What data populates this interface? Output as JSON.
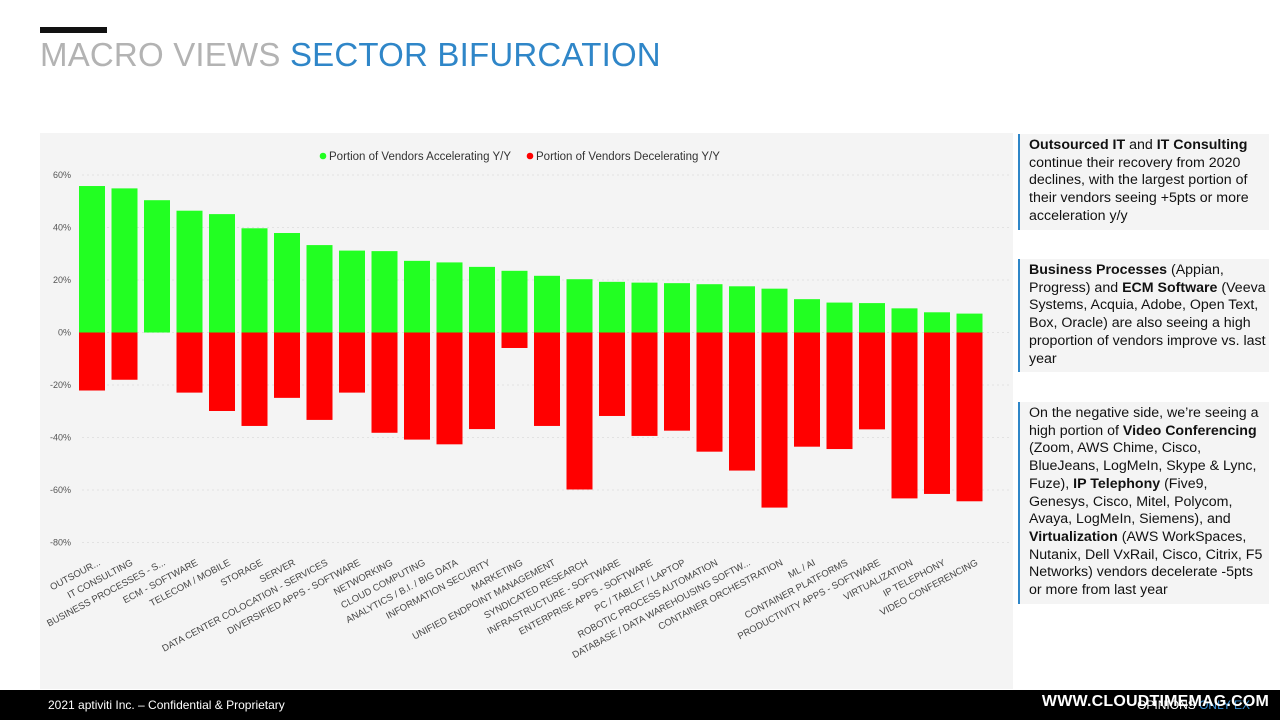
{
  "header": {
    "title_grey": "MACRO VIEWS",
    "title_blue": "SECTOR BIFURCATION"
  },
  "chart_data": {
    "type": "bar",
    "title": "",
    "xlabel": "",
    "ylabel": "",
    "ylim": [
      -80,
      60
    ],
    "yticks": [
      60,
      40,
      20,
      0,
      -20,
      -40,
      -60,
      -80
    ],
    "ytick_labels": [
      "60%",
      "40%",
      "20%",
      "0%",
      "-20%",
      "-40%",
      "-60%",
      "-80%"
    ],
    "grid": true,
    "legend_position": "top-center",
    "categories": [
      "OUTSOUR...",
      "IT CONSULTING",
      "BUSINESS PROCESSES - S...",
      "ECM - SOFTWARE",
      "TELECOM / MOBILE",
      "STORAGE",
      "SERVER",
      "DATA CENTER COLOCATION - SERVICES",
      "DIVERSIFIED APPS - SOFTWARE",
      "NETWORKING",
      "CLOUD COMPUTING",
      "ANALYTICS / B.I. / BIG DATA",
      "INFORMATION SECURITY",
      "MARKETING",
      "UNIFIED ENDPOINT MANAGEMENT",
      "SYNDICATED RESEARCH",
      "INFRASTRUCTURE - SOFTWARE",
      "ENTERPRISE APPS - SOFTWARE",
      "PC / TABLET / LAPTOP",
      "ROBOTIC PROCESS AUTOMATION",
      "DATABASE / DATA WAREHOUSING SOFTW...",
      "CONTAINER ORCHESTRATION",
      "ML / AI",
      "CONTAINER PLATFORMS",
      "PRODUCTIVITY APPS - SOFTWARE",
      "VIRTUALIZATION",
      "IP TELEPHONY",
      "VIDEO CONFERENCING"
    ],
    "series": [
      {
        "name": "Portion of Vendors Accelerating Y/Y",
        "color": "#22ff22",
        "values": [
          55.8,
          54.9,
          50.4,
          46.4,
          45.1,
          39.7,
          37.9,
          33.3,
          31.2,
          31.0,
          27.3,
          26.7,
          25.0,
          23.5,
          21.6,
          20.3,
          19.3,
          19.0,
          18.8,
          18.4,
          17.6,
          16.7,
          12.7,
          11.4,
          11.2,
          9.2,
          7.7,
          7.2
        ]
      },
      {
        "name": "Portion of Vendors Decelerating Y/Y",
        "color": "#ff0000",
        "values": [
          -22.1,
          -18.0,
          0,
          -22.9,
          -29.9,
          -35.6,
          -24.9,
          -33.3,
          -22.9,
          -38.2,
          -40.8,
          -42.6,
          -36.8,
          -5.9,
          -35.6,
          -59.8,
          -31.8,
          -39.4,
          -37.4,
          -45.4,
          -52.6,
          -66.7,
          -43.5,
          -44.4,
          -36.9,
          -63.2,
          -61.5,
          -64.3
        ]
      }
    ]
  },
  "notes": [
    {
      "parts": [
        {
          "text": "Outsourced IT",
          "bold": true
        },
        {
          "text": " and ",
          "bold": false
        },
        {
          "text": "IT Consulting",
          "bold": true
        },
        {
          "text": " continue their recovery from 2020 declines, with the largest portion of their vendors seeing +5pts or more acceleration y/y",
          "bold": false
        }
      ]
    },
    {
      "parts": [
        {
          "text": "Business Processes",
          "bold": true
        },
        {
          "text": " (Appian, Progress) and ",
          "bold": false
        },
        {
          "text": "ECM Software",
          "bold": true
        },
        {
          "text": " (Veeva Systems, Acquia, Adobe, Open Text, Box, Oracle) are also seeing a high proportion of vendors improve vs. last year",
          "bold": false
        }
      ]
    },
    {
      "parts": [
        {
          "text": "On the negative side, we’re seeing a high portion of ",
          "bold": false
        },
        {
          "text": "Video Conferencing",
          "bold": true
        },
        {
          "text": " (Zoom, AWS Chime, Cisco, BlueJeans, LogMeIn, Skype & Lync, Fuze), ",
          "bold": false
        },
        {
          "text": "IP Telephony",
          "bold": true
        },
        {
          "text": " (Five9, Genesys, Cisco, Mitel, Polycom, Avaya, LogMeIn, Siemens), and ",
          "bold": false
        },
        {
          "text": "Virtualization",
          "bold": true
        },
        {
          "text": " (AWS WorkSpaces, Nutanix, Dell VxRail, Cisco, Citrix, F5 Networks) vendors decelerate -5pts or more from last year",
          "bold": false
        }
      ]
    }
  ],
  "footer": {
    "left": "2021 aptiviti Inc. – Confidential & Proprietary",
    "right_prefix": "OPINIONS ",
    "right_blue": "ONLY EX",
    "watermark": "WWW.CLOUDTIMEMAG.COM"
  }
}
